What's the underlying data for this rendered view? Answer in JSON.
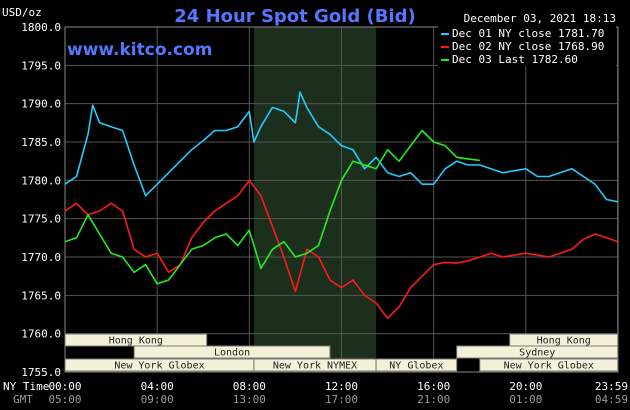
{
  "header": {
    "unit": "USD/oz",
    "title": "24 Hour Spot Gold (Bid)",
    "website": "www.kitco.com",
    "timestamp": "December 03, 2021 18:13"
  },
  "colors": {
    "background": "#000000",
    "grid": "#555555",
    "highlight": "#1c2e1c",
    "dec01": "#22ccff",
    "dec02": "#ff1a1a",
    "dec03": "#22ee22",
    "session_box": "#f5f0d8"
  },
  "axis_footer": {
    "ny_time_label": "NY Time",
    "gmt_label": "GMT"
  },
  "sessions": [
    {
      "label": "Hong Kong",
      "start": 0,
      "end": 6.15,
      "row": 0
    },
    {
      "label": "Hong Kong",
      "start": 19.3,
      "end": 23.99,
      "row": 0
    },
    {
      "label": "London",
      "start": 3.0,
      "end": 11.5,
      "row": 1
    },
    {
      "label": "Sydney",
      "start": 17.0,
      "end": 23.99,
      "row": 1
    },
    {
      "label": "New York Globex",
      "start": 0,
      "end": 8.2,
      "row": 2
    },
    {
      "label": "New York NYMEX",
      "start": 8.2,
      "end": 13.5,
      "row": 2
    },
    {
      "label": "NY Globex",
      "start": 13.5,
      "end": 17.0,
      "row": 2
    },
    {
      "label": "New York Globex",
      "start": 18.0,
      "end": 23.99,
      "row": 2
    }
  ],
  "chart_data": {
    "type": "line",
    "xlim": [
      0,
      24
    ],
    "ylim": [
      1755,
      1800
    ],
    "y_ticks": [
      "1755.0",
      "1760.0",
      "1765.0",
      "1770.0",
      "1775.0",
      "1780.0",
      "1785.0",
      "1790.0",
      "1795.0",
      "1800.0"
    ],
    "y_tick_values": [
      1755,
      1760,
      1765,
      1770,
      1775,
      1780,
      1785,
      1790,
      1795,
      1800
    ],
    "x_ticks": [
      {
        "x": 0,
        "ny": "00:00",
        "gmt": "05:00"
      },
      {
        "x": 4,
        "ny": "04:00",
        "gmt": "09:00"
      },
      {
        "x": 8,
        "ny": "08:00",
        "gmt": "13:00"
      },
      {
        "x": 12,
        "ny": "12:00",
        "gmt": "17:00"
      },
      {
        "x": 16,
        "ny": "16:00",
        "gmt": "21:00"
      },
      {
        "x": 20,
        "ny": "20:00",
        "gmt": "01:00"
      },
      {
        "x": 23.99,
        "ny": "23:59",
        "gmt": "04:59"
      }
    ],
    "highlight_range": [
      8.2,
      13.5
    ],
    "grid": true,
    "series": [
      {
        "name": "Dec 01 NY close 1781.70",
        "color": "#22ccff",
        "x": [
          0,
          0.5,
          1.0,
          1.2,
          1.5,
          2.0,
          2.5,
          3.0,
          3.5,
          4.0,
          4.5,
          5.0,
          5.5,
          6.0,
          6.5,
          7.0,
          7.5,
          8.0,
          8.2,
          8.5,
          9.0,
          9.5,
          10.0,
          10.2,
          10.5,
          11.0,
          11.5,
          12.0,
          12.5,
          13.0,
          13.5,
          14.0,
          14.5,
          15.0,
          15.5,
          16.0,
          16.5,
          17.0,
          17.5,
          18.0,
          19.0,
          20.0,
          20.5,
          21.0,
          22.0,
          22.5,
          23.0,
          23.5,
          23.99
        ],
        "y": [
          1779.5,
          1780.5,
          1786.0,
          1789.8,
          1787.5,
          1787.0,
          1786.5,
          1782.0,
          1778.0,
          1779.5,
          1781.0,
          1782.5,
          1784.0,
          1785.2,
          1786.5,
          1786.5,
          1787.0,
          1789.0,
          1785.0,
          1787.0,
          1789.5,
          1789.0,
          1787.5,
          1791.5,
          1789.5,
          1787.0,
          1786.0,
          1784.5,
          1784.0,
          1781.5,
          1783.0,
          1781.0,
          1780.5,
          1781.0,
          1779.5,
          1779.5,
          1781.5,
          1782.5,
          1782.0,
          1782.0,
          1781.0,
          1781.5,
          1780.5,
          1780.5,
          1781.5,
          1780.5,
          1779.5,
          1777.5,
          1777.2
        ]
      },
      {
        "name": "Dec 02 NY close 1768.90",
        "color": "#ff1a1a",
        "x": [
          0,
          0.5,
          1.0,
          1.5,
          2.0,
          2.5,
          3.0,
          3.5,
          4.0,
          4.5,
          5.0,
          5.5,
          6.0,
          6.5,
          7.0,
          7.5,
          8.0,
          8.5,
          9.0,
          9.5,
          10.0,
          10.5,
          11.0,
          11.5,
          12.0,
          12.5,
          13.0,
          13.5,
          14.0,
          14.5,
          15.0,
          15.5,
          16.0,
          16.5,
          17.0,
          17.5,
          18.0,
          18.5,
          19.0,
          20.0,
          21.0,
          22.0,
          22.5,
          23.0,
          23.5,
          23.99
        ],
        "y": [
          1776.0,
          1777.0,
          1775.5,
          1776.0,
          1777.0,
          1776.0,
          1771.0,
          1770.0,
          1770.5,
          1768.0,
          1769.0,
          1772.5,
          1774.5,
          1776.0,
          1777.0,
          1778.0,
          1780.0,
          1778.0,
          1774.0,
          1770.0,
          1765.5,
          1771.0,
          1770.0,
          1767.0,
          1766.0,
          1767.0,
          1765.0,
          1764.0,
          1762.0,
          1763.5,
          1766.0,
          1767.5,
          1769.0,
          1769.3,
          1769.2,
          1769.5,
          1770.0,
          1770.5,
          1770.0,
          1770.5,
          1770.0,
          1771.0,
          1772.3,
          1773.0,
          1772.5,
          1772.0
        ]
      },
      {
        "name": "Dec 03 Last 1782.60",
        "color": "#22ee22",
        "x": [
          0,
          0.5,
          1.0,
          1.5,
          2.0,
          2.5,
          3.0,
          3.5,
          4.0,
          4.5,
          5.0,
          5.5,
          6.0,
          6.5,
          7.0,
          7.5,
          8.0,
          8.5,
          9.0,
          9.5,
          10.0,
          10.5,
          11.0,
          11.5,
          12.0,
          12.5,
          13.0,
          13.5,
          14.0,
          14.5,
          15.0,
          15.5,
          16.0,
          16.5,
          17.0,
          17.5,
          18.0
        ],
        "y": [
          1772.0,
          1772.5,
          1775.5,
          1773.0,
          1770.5,
          1770.0,
          1768.0,
          1769.0,
          1766.5,
          1767.0,
          1769.0,
          1771.0,
          1771.5,
          1772.5,
          1773.0,
          1771.5,
          1773.5,
          1768.5,
          1771.0,
          1772.0,
          1770.0,
          1770.5,
          1771.5,
          1776.0,
          1780.0,
          1782.5,
          1782.0,
          1781.5,
          1784.0,
          1782.5,
          1784.5,
          1786.5,
          1785.0,
          1784.5,
          1783.0,
          1782.8,
          1782.6
        ]
      }
    ]
  }
}
